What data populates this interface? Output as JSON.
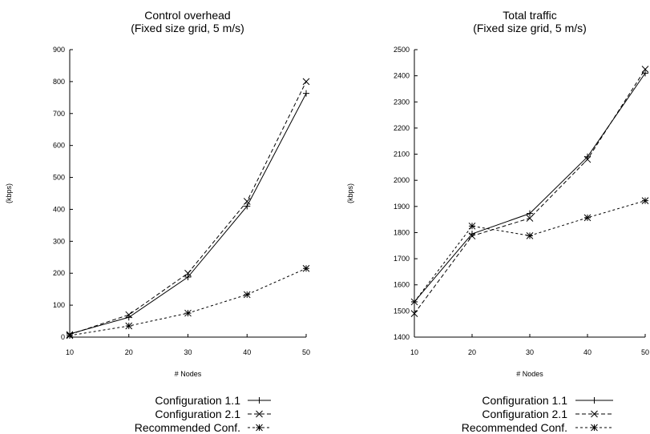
{
  "chart_data": [
    {
      "type": "line",
      "title": "Control overhead",
      "subtitle": "(Fixed size grid, 5 m/s)",
      "xlabel": "# Nodes",
      "ylabel": "(kbps)",
      "x": [
        10,
        20,
        30,
        40,
        50
      ],
      "xlim": [
        10,
        50
      ],
      "ylim": [
        0,
        900
      ],
      "xticks": [
        10,
        20,
        30,
        40,
        50
      ],
      "yticks": [
        0,
        100,
        200,
        300,
        400,
        500,
        600,
        700,
        800,
        900
      ],
      "grid": false,
      "legend": "bottom",
      "series": [
        {
          "name": "Configuration 1.1",
          "values": [
            10,
            62,
            188,
            410,
            763
          ],
          "marker": "plus",
          "dash": "solid"
        },
        {
          "name": "Configuration 2.1",
          "values": [
            8,
            70,
            200,
            425,
            800
          ],
          "marker": "x",
          "dash": "dashed"
        },
        {
          "name": "Recommended Conf.",
          "values": [
            5,
            35,
            75,
            133,
            215
          ],
          "marker": "star",
          "dash": "dotted"
        }
      ]
    },
    {
      "type": "line",
      "title": "Total traffic",
      "subtitle": "(Fixed size grid, 5 m/s)",
      "xlabel": "# Nodes",
      "ylabel": "(kbps)",
      "x": [
        10,
        20,
        30,
        40,
        50
      ],
      "xlim": [
        10,
        50
      ],
      "ylim": [
        1400,
        2500
      ],
      "xticks": [
        10,
        20,
        30,
        40,
        50
      ],
      "yticks": [
        1400,
        1500,
        1600,
        1700,
        1800,
        1900,
        2000,
        2100,
        2200,
        2300,
        2400,
        2500
      ],
      "grid": false,
      "legend": "bottom",
      "series": [
        {
          "name": "Configuration 1.1",
          "values": [
            1535,
            1795,
            1873,
            2090,
            2410
          ],
          "marker": "plus",
          "dash": "solid"
        },
        {
          "name": "Configuration 2.1",
          "values": [
            1490,
            1787,
            1855,
            2080,
            2425
          ],
          "marker": "x",
          "dash": "dashed"
        },
        {
          "name": "Recommended Conf.",
          "values": [
            1535,
            1825,
            1788,
            1857,
            1922
          ],
          "marker": "star",
          "dash": "dotted"
        }
      ]
    }
  ]
}
